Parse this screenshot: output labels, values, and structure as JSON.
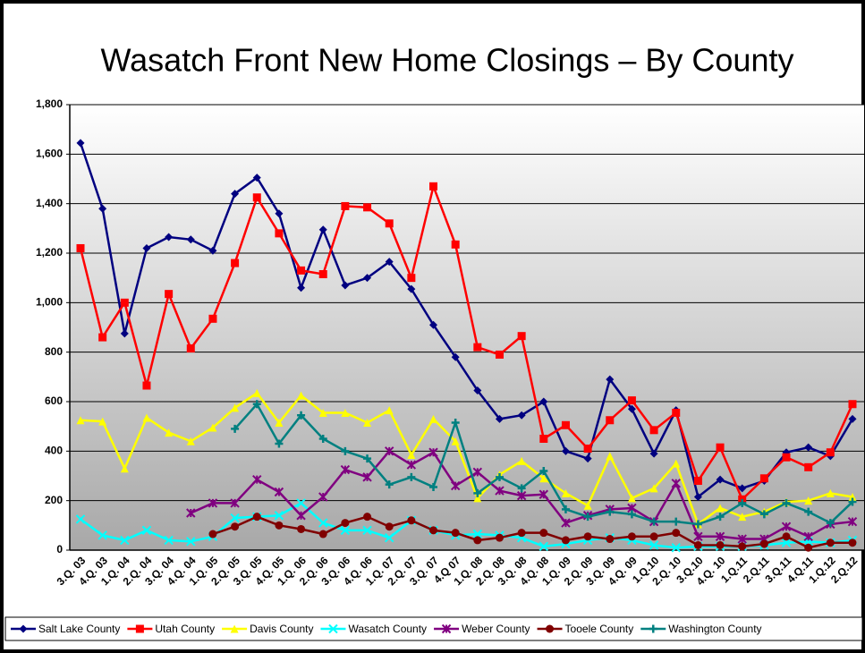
{
  "chart_data": {
    "type": "line",
    "title": "Wasatch Front New Home Closings – By County",
    "categories": [
      "3.Q. 03",
      "4.Q. 03",
      "1.Q. 04",
      "2.Q. 04",
      "3.Q. 04",
      "4.Q. 04",
      "1.Q. 05",
      "2.Q. 05",
      "3.Q. 05",
      "4.Q. 05",
      "1.Q. 06",
      "2.Q. 06",
      "3.Q. 06",
      "4.Q. 06",
      "1.Q. 07",
      "2.Q. 07",
      "3.Q. 07",
      "4.Q 07",
      "1.Q. 08",
      "2.Q. 08",
      "3.Q. 08",
      "4.Q. 08",
      "1.Q. 09",
      "2.Q. 09",
      "3.Q. 09",
      "4.Q. 09",
      "1.Q.10",
      "2.Q. 10",
      "3.Q.10",
      "4.Q. 10",
      "1.Q.11",
      "2.Q.11",
      "3.Q.11",
      "4.Q.11",
      "1.Q.12",
      "2.Q.12"
    ],
    "ylim": [
      0,
      1800
    ],
    "yticks": [
      0,
      200,
      400,
      600,
      800,
      {
        "value": 1000,
        "label": "1,000"
      },
      {
        "value": 1200,
        "label": "1,200"
      },
      {
        "value": 1400,
        "label": "1,400"
      },
      {
        "value": 1600,
        "label": "1,600"
      },
      {
        "value": 1800,
        "label": "1,800"
      }
    ],
    "grid": true,
    "legend": "bottom",
    "series": [
      {
        "name": "Salt Lake County",
        "color": "#000080",
        "marker": "diamond",
        "values": [
          1645,
          1380,
          875,
          1220,
          1265,
          1255,
          1210,
          1440,
          1505,
          1360,
          1060,
          1295,
          1070,
          1100,
          1165,
          1055,
          910,
          780,
          645,
          530,
          545,
          600,
          400,
          370,
          690,
          570,
          390,
          565,
          215,
          285,
          250,
          280,
          395,
          415,
          380,
          530
        ]
      },
      {
        "name": "Utah County",
        "color": "#ff0000",
        "marker": "square",
        "values": [
          1220,
          860,
          1000,
          665,
          1035,
          815,
          935,
          1160,
          1425,
          1280,
          1130,
          1115,
          1390,
          1385,
          1320,
          1100,
          1470,
          1235,
          820,
          790,
          865,
          450,
          505,
          410,
          525,
          605,
          485,
          555,
          280,
          415,
          205,
          290,
          375,
          335,
          395,
          590
        ]
      },
      {
        "name": "Davis County",
        "color": "#ffff00",
        "marker": "triangle",
        "values": [
          525,
          520,
          330,
          535,
          475,
          440,
          495,
          575,
          635,
          515,
          625,
          555,
          555,
          515,
          565,
          385,
          530,
          440,
          210,
          305,
          360,
          290,
          230,
          180,
          380,
          210,
          250,
          350,
          105,
          170,
          135,
          155,
          195,
          200,
          230,
          215
        ]
      },
      {
        "name": "Wasatch County",
        "color": "#00ffff",
        "marker": "x",
        "values": [
          125,
          60,
          40,
          80,
          40,
          35,
          55,
          130,
          135,
          140,
          190,
          110,
          80,
          80,
          50,
          120,
          80,
          60,
          65,
          60,
          50,
          15,
          25,
          40,
          50,
          40,
          20,
          10,
          15,
          15,
          15,
          20,
          30,
          35,
          30,
          40
        ]
      },
      {
        "name": "Weber County",
        "color": "#800080",
        "marker": "star",
        "values": [
          null,
          null,
          null,
          null,
          null,
          150,
          190,
          190,
          285,
          235,
          140,
          215,
          325,
          295,
          400,
          345,
          395,
          260,
          315,
          240,
          220,
          225,
          110,
          140,
          165,
          170,
          115,
          270,
          55,
          55,
          45,
          45,
          95,
          55,
          105,
          115
        ]
      },
      {
        "name": "Tooele County",
        "color": "#800000",
        "marker": "circle",
        "values": [
          null,
          null,
          null,
          null,
          null,
          null,
          65,
          95,
          135,
          100,
          85,
          65,
          110,
          135,
          95,
          120,
          80,
          70,
          40,
          50,
          70,
          70,
          40,
          55,
          45,
          55,
          55,
          70,
          20,
          20,
          15,
          25,
          55,
          10,
          30,
          30
        ]
      },
      {
        "name": "Washington County",
        "color": "#008080",
        "marker": "plus",
        "values": [
          null,
          null,
          null,
          null,
          null,
          null,
          null,
          490,
          590,
          430,
          545,
          450,
          400,
          370,
          265,
          295,
          255,
          515,
          230,
          295,
          250,
          320,
          165,
          135,
          155,
          145,
          115,
          115,
          105,
          135,
          190,
          145,
          190,
          155,
          110,
          195
        ]
      }
    ]
  }
}
